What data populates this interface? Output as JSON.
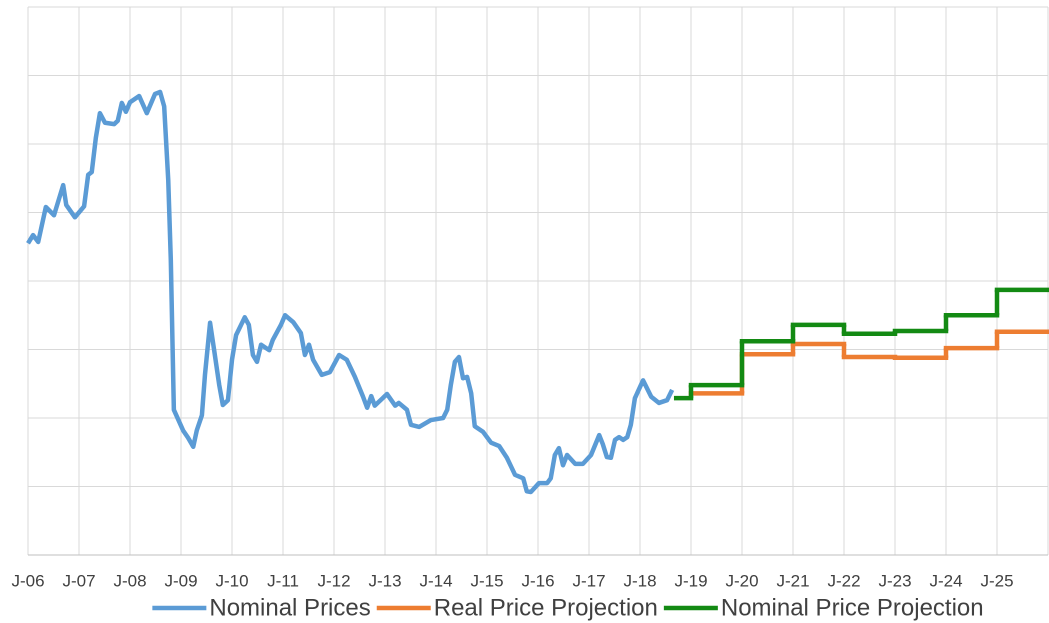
{
  "chart_data": {
    "type": "line",
    "xlim": [
      2006,
      2026
    ],
    "ylim": [
      0,
      8
    ],
    "yticks": [
      0,
      1,
      2,
      3,
      4,
      5,
      6,
      7,
      8
    ],
    "xticks": [
      {
        "value": 2006,
        "label": "J-06"
      },
      {
        "value": 2007,
        "label": "J-07"
      },
      {
        "value": 2008,
        "label": "J-08"
      },
      {
        "value": 2009,
        "label": "J-09"
      },
      {
        "value": 2010,
        "label": "J-10"
      },
      {
        "value": 2011,
        "label": "J-11"
      },
      {
        "value": 2012,
        "label": "J-12"
      },
      {
        "value": 2013,
        "label": "J-13"
      },
      {
        "value": 2014,
        "label": "J-14"
      },
      {
        "value": 2015,
        "label": "J-15"
      },
      {
        "value": 2016,
        "label": "J-16"
      },
      {
        "value": 2017,
        "label": "J-17"
      },
      {
        "value": 2018,
        "label": "J-18"
      },
      {
        "value": 2019,
        "label": "J-19"
      },
      {
        "value": 2020,
        "label": "J-20"
      },
      {
        "value": 2021,
        "label": "J-21"
      },
      {
        "value": 2022,
        "label": "J-22"
      },
      {
        "value": 2023,
        "label": "J-23"
      },
      {
        "value": 2024,
        "label": "J-24"
      },
      {
        "value": 2025,
        "label": "J-25"
      }
    ],
    "grid": true,
    "legend": "bottom",
    "series": [
      {
        "name": "Nominal Prices",
        "color": "#5b9bd5",
        "step": false,
        "x": [
          2006.0,
          2006.1,
          2006.2,
          2006.35,
          2006.51,
          2006.69,
          2006.75,
          2006.92,
          2007.1,
          2007.18,
          2007.25,
          2007.33,
          2007.41,
          2007.51,
          2007.69,
          2007.76,
          2007.84,
          2007.92,
          2008.0,
          2008.18,
          2008.33,
          2008.49,
          2008.59,
          2008.67,
          2008.75,
          2008.8,
          2008.86,
          2009.04,
          2009.14,
          2009.24,
          2009.31,
          2009.41,
          2009.47,
          2009.57,
          2009.65,
          2009.75,
          2009.82,
          2009.92,
          2010.0,
          2010.08,
          2010.25,
          2010.33,
          2010.41,
          2010.49,
          2010.57,
          2010.73,
          2010.8,
          2010.96,
          2011.04,
          2011.2,
          2011.35,
          2011.43,
          2011.51,
          2011.59,
          2011.76,
          2011.92,
          2012.1,
          2012.25,
          2012.41,
          2012.57,
          2012.65,
          2012.73,
          2012.8,
          2013.04,
          2013.2,
          2013.27,
          2013.43,
          2013.51,
          2013.67,
          2013.9,
          2014.14,
          2014.22,
          2014.29,
          2014.37,
          2014.45,
          2014.53,
          2014.61,
          2014.69,
          2014.76,
          2014.92,
          2015.08,
          2015.24,
          2015.39,
          2015.55,
          2015.71,
          2015.78,
          2015.86,
          2016.02,
          2016.18,
          2016.25,
          2016.33,
          2016.41,
          2016.49,
          2016.57,
          2016.73,
          2016.88,
          2017.04,
          2017.2,
          2017.27,
          2017.35,
          2017.43,
          2017.51,
          2017.59,
          2017.67,
          2017.75,
          2017.82,
          2017.9,
          2018.06,
          2018.22,
          2018.37,
          2018.53,
          2018.63
        ],
        "values": [
          4.55,
          4.67,
          4.57,
          5.08,
          4.96,
          5.4,
          5.11,
          4.93,
          5.09,
          5.55,
          5.59,
          6.09,
          6.45,
          6.31,
          6.29,
          6.34,
          6.6,
          6.47,
          6.61,
          6.7,
          6.45,
          6.73,
          6.76,
          6.55,
          5.47,
          4.31,
          2.12,
          1.82,
          1.71,
          1.58,
          1.82,
          2.04,
          2.63,
          3.39,
          2.99,
          2.48,
          2.19,
          2.26,
          2.85,
          3.21,
          3.47,
          3.36,
          2.92,
          2.82,
          3.07,
          2.99,
          3.14,
          3.36,
          3.5,
          3.4,
          3.24,
          2.92,
          3.07,
          2.85,
          2.63,
          2.67,
          2.92,
          2.85,
          2.6,
          2.31,
          2.15,
          2.32,
          2.18,
          2.35,
          2.18,
          2.22,
          2.12,
          1.9,
          1.87,
          1.97,
          2.0,
          2.12,
          2.48,
          2.82,
          2.89,
          2.58,
          2.6,
          2.36,
          1.88,
          1.8,
          1.64,
          1.59,
          1.42,
          1.17,
          1.12,
          0.93,
          0.92,
          1.05,
          1.05,
          1.12,
          1.46,
          1.56,
          1.31,
          1.46,
          1.33,
          1.33,
          1.46,
          1.75,
          1.62,
          1.43,
          1.42,
          1.68,
          1.72,
          1.68,
          1.72,
          1.9,
          2.29,
          2.55,
          2.31,
          2.22,
          2.26,
          2.41
        ]
      },
      {
        "name": "Real Price Projection",
        "color": "#ed7d31",
        "step": true,
        "x": [
          2019,
          2020,
          2021,
          2022,
          2023,
          2024,
          2025
        ],
        "values": [
          2.36,
          2.93,
          3.08,
          2.89,
          2.88,
          3.02,
          3.26
        ]
      },
      {
        "name": "Nominal Price Projection",
        "color": "#138a13",
        "step": true,
        "x": [
          2018.71,
          2019,
          2020,
          2021,
          2022,
          2023,
          2024,
          2025
        ],
        "values": [
          2.29,
          2.48,
          3.12,
          3.36,
          3.23,
          3.27,
          3.5,
          3.87
        ]
      }
    ]
  }
}
